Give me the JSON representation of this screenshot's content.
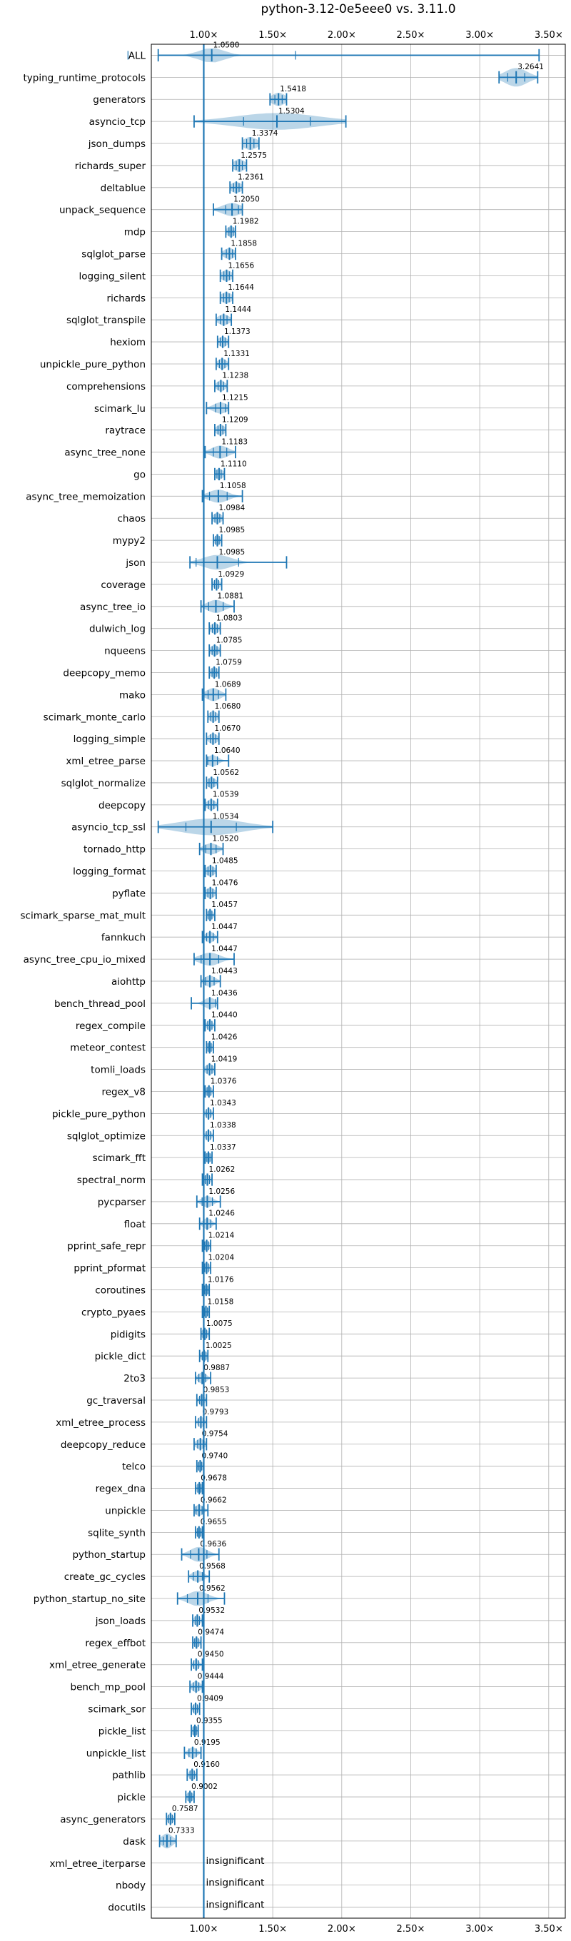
{
  "chart_data": {
    "type": "violin",
    "title": "python-3.12-0e5eee0 vs. 3.11.0",
    "xlabel": "",
    "ylabel": "",
    "x_ticks": [
      1.0,
      1.5,
      2.0,
      2.5,
      3.0,
      3.5
    ],
    "x_tick_labels": [
      "1.00×",
      "1.50×",
      "2.00×",
      "2.50×",
      "3.00×",
      "3.50×"
    ],
    "xlim": [
      0.62,
      3.62
    ],
    "reference_line": 1.0,
    "grid": true,
    "benchmarks": [
      {
        "name": "ALL",
        "value": 1.058,
        "label": "1.0580",
        "min": 0.67,
        "max": 3.43,
        "spread": 0.09,
        "width": 0.8
      },
      {
        "name": "typing_runtime_protocols",
        "value": 3.2641,
        "label": "3.2641",
        "min": 3.14,
        "max": 3.42,
        "spread": 0.08,
        "width": 1.0
      },
      {
        "name": "generators",
        "value": 1.5418,
        "label": "1.5418",
        "min": 1.48,
        "max": 1.6,
        "spread": 0.05,
        "width": 0.7
      },
      {
        "name": "asyncio_tcp",
        "value": 1.5304,
        "label": "1.5304",
        "min": 0.93,
        "max": 2.03,
        "spread": 0.3,
        "width": 0.9
      },
      {
        "name": "json_dumps",
        "value": 1.3374,
        "label": "1.3374",
        "min": 1.28,
        "max": 1.4,
        "spread": 0.05,
        "width": 0.7
      },
      {
        "name": "richards_super",
        "value": 1.2575,
        "label": "1.2575",
        "min": 1.21,
        "max": 1.31,
        "spread": 0.04,
        "width": 0.7
      },
      {
        "name": "deltablue",
        "value": 1.2361,
        "label": "1.2361",
        "min": 1.19,
        "max": 1.28,
        "spread": 0.04,
        "width": 0.6
      },
      {
        "name": "unpack_sequence",
        "value": 1.205,
        "label": "1.2050",
        "min": 1.07,
        "max": 1.28,
        "spread": 0.07,
        "width": 0.7
      },
      {
        "name": "mdp",
        "value": 1.1982,
        "label": "1.1982",
        "min": 1.16,
        "max": 1.23,
        "spread": 0.03,
        "width": 0.6
      },
      {
        "name": "sqlglot_parse",
        "value": 1.1858,
        "label": "1.1858",
        "min": 1.13,
        "max": 1.23,
        "spread": 0.04,
        "width": 0.6
      },
      {
        "name": "logging_silent",
        "value": 1.1656,
        "label": "1.1656",
        "min": 1.12,
        "max": 1.21,
        "spread": 0.04,
        "width": 0.6
      },
      {
        "name": "richards",
        "value": 1.1644,
        "label": "1.1644",
        "min": 1.12,
        "max": 1.21,
        "spread": 0.04,
        "width": 0.6
      },
      {
        "name": "sqlglot_transpile",
        "value": 1.1444,
        "label": "1.1444",
        "min": 1.09,
        "max": 1.2,
        "spread": 0.04,
        "width": 0.6
      },
      {
        "name": "hexiom",
        "value": 1.1373,
        "label": "1.1373",
        "min": 1.1,
        "max": 1.18,
        "spread": 0.03,
        "width": 0.6
      },
      {
        "name": "unpickle_pure_python",
        "value": 1.1331,
        "label": "1.1331",
        "min": 1.09,
        "max": 1.18,
        "spread": 0.03,
        "width": 0.6
      },
      {
        "name": "comprehensions",
        "value": 1.1238,
        "label": "1.1238",
        "min": 1.08,
        "max": 1.17,
        "spread": 0.03,
        "width": 0.6
      },
      {
        "name": "scimark_lu",
        "value": 1.1215,
        "label": "1.1215",
        "min": 1.02,
        "max": 1.18,
        "spread": 0.05,
        "width": 0.6
      },
      {
        "name": "raytrace",
        "value": 1.1209,
        "label": "1.1209",
        "min": 1.08,
        "max": 1.16,
        "spread": 0.03,
        "width": 0.6
      },
      {
        "name": "async_tree_none",
        "value": 1.1183,
        "label": "1.1183",
        "min": 1.01,
        "max": 1.23,
        "spread": 0.06,
        "width": 0.7
      },
      {
        "name": "go",
        "value": 1.111,
        "label": "1.1110",
        "min": 1.08,
        "max": 1.15,
        "spread": 0.03,
        "width": 0.6
      },
      {
        "name": "async_tree_memoization",
        "value": 1.1058,
        "label": "1.1058",
        "min": 0.99,
        "max": 1.28,
        "spread": 0.07,
        "width": 0.7
      },
      {
        "name": "chaos",
        "value": 1.0984,
        "label": "1.0984",
        "min": 1.06,
        "max": 1.14,
        "spread": 0.03,
        "width": 0.6
      },
      {
        "name": "mypy2",
        "value": 1.0985,
        "label": "1.0985",
        "min": 1.07,
        "max": 1.13,
        "spread": 0.02,
        "width": 0.6
      },
      {
        "name": "json",
        "value": 1.0985,
        "label": "1.0985",
        "min": 0.9,
        "max": 1.6,
        "spread": 0.1,
        "width": 0.8
      },
      {
        "name": "coverage",
        "value": 1.0929,
        "label": "1.0929",
        "min": 1.06,
        "max": 1.13,
        "spread": 0.02,
        "width": 0.6
      },
      {
        "name": "async_tree_io",
        "value": 1.0881,
        "label": "1.0881",
        "min": 0.98,
        "max": 1.22,
        "spread": 0.06,
        "width": 0.7
      },
      {
        "name": "dulwich_log",
        "value": 1.0803,
        "label": "1.0803",
        "min": 1.04,
        "max": 1.12,
        "spread": 0.03,
        "width": 0.6
      },
      {
        "name": "nqueens",
        "value": 1.0785,
        "label": "1.0785",
        "min": 1.04,
        "max": 1.12,
        "spread": 0.03,
        "width": 0.6
      },
      {
        "name": "deepcopy_memo",
        "value": 1.0759,
        "label": "1.0759",
        "min": 1.04,
        "max": 1.11,
        "spread": 0.03,
        "width": 0.6
      },
      {
        "name": "mako",
        "value": 1.0689,
        "label": "1.0689",
        "min": 0.99,
        "max": 1.16,
        "spread": 0.05,
        "width": 0.7
      },
      {
        "name": "scimark_monte_carlo",
        "value": 1.068,
        "label": "1.0680",
        "min": 1.03,
        "max": 1.11,
        "spread": 0.03,
        "width": 0.6
      },
      {
        "name": "logging_simple",
        "value": 1.067,
        "label": "1.0670",
        "min": 1.02,
        "max": 1.11,
        "spread": 0.03,
        "width": 0.6
      },
      {
        "name": "xml_etree_parse",
        "value": 1.064,
        "label": "1.0640",
        "min": 1.02,
        "max": 1.18,
        "spread": 0.04,
        "width": 0.6
      },
      {
        "name": "sqlglot_normalize",
        "value": 1.0562,
        "label": "1.0562",
        "min": 1.02,
        "max": 1.1,
        "spread": 0.03,
        "width": 0.6
      },
      {
        "name": "deepcopy",
        "value": 1.0539,
        "label": "1.0539",
        "min": 1.01,
        "max": 1.1,
        "spread": 0.03,
        "width": 0.6
      },
      {
        "name": "asyncio_tcp_ssl",
        "value": 1.0534,
        "label": "1.0534",
        "min": 0.67,
        "max": 1.5,
        "spread": 0.22,
        "width": 0.9
      },
      {
        "name": "tornado_http",
        "value": 1.052,
        "label": "1.0520",
        "min": 0.97,
        "max": 1.14,
        "spread": 0.05,
        "width": 0.6
      },
      {
        "name": "logging_format",
        "value": 1.0485,
        "label": "1.0485",
        "min": 1.01,
        "max": 1.09,
        "spread": 0.03,
        "width": 0.6
      },
      {
        "name": "pyflate",
        "value": 1.0476,
        "label": "1.0476",
        "min": 1.01,
        "max": 1.09,
        "spread": 0.03,
        "width": 0.6
      },
      {
        "name": "scimark_sparse_mat_mult",
        "value": 1.0457,
        "label": "1.0457",
        "min": 1.02,
        "max": 1.08,
        "spread": 0.02,
        "width": 0.6
      },
      {
        "name": "fannkuch",
        "value": 1.0447,
        "label": "1.0447",
        "min": 0.99,
        "max": 1.1,
        "spread": 0.03,
        "width": 0.6
      },
      {
        "name": "async_tree_cpu_io_mixed",
        "value": 1.0447,
        "label": "1.0447",
        "min": 0.93,
        "max": 1.22,
        "spread": 0.07,
        "width": 0.7
      },
      {
        "name": "aiohttp",
        "value": 1.0443,
        "label": "1.0443",
        "min": 0.98,
        "max": 1.12,
        "spread": 0.04,
        "width": 0.6
      },
      {
        "name": "bench_thread_pool",
        "value": 1.0436,
        "label": "1.0436",
        "min": 0.91,
        "max": 1.1,
        "spread": 0.04,
        "width": 0.6
      },
      {
        "name": "regex_compile",
        "value": 1.044,
        "label": "1.0440",
        "min": 1.01,
        "max": 1.08,
        "spread": 0.02,
        "width": 0.6
      },
      {
        "name": "meteor_contest",
        "value": 1.0426,
        "label": "1.0426",
        "min": 1.02,
        "max": 1.07,
        "spread": 0.02,
        "width": 0.6
      },
      {
        "name": "tomli_loads",
        "value": 1.0419,
        "label": "1.0419",
        "min": 1.0,
        "max": 1.08,
        "spread": 0.03,
        "width": 0.6
      },
      {
        "name": "regex_v8",
        "value": 1.0376,
        "label": "1.0376",
        "min": 1.01,
        "max": 1.07,
        "spread": 0.02,
        "width": 0.6
      },
      {
        "name": "pickle_pure_python",
        "value": 1.0343,
        "label": "1.0343",
        "min": 1.0,
        "max": 1.07,
        "spread": 0.02,
        "width": 0.6
      },
      {
        "name": "sqlglot_optimize",
        "value": 1.0338,
        "label": "1.0338",
        "min": 1.0,
        "max": 1.07,
        "spread": 0.02,
        "width": 0.6
      },
      {
        "name": "scimark_fft",
        "value": 1.0337,
        "label": "1.0337",
        "min": 1.01,
        "max": 1.06,
        "spread": 0.02,
        "width": 0.6
      },
      {
        "name": "spectral_norm",
        "value": 1.0262,
        "label": "1.0262",
        "min": 0.99,
        "max": 1.06,
        "spread": 0.02,
        "width": 0.6
      },
      {
        "name": "pycparser",
        "value": 1.0256,
        "label": "1.0256",
        "min": 0.95,
        "max": 1.12,
        "spread": 0.04,
        "width": 0.6
      },
      {
        "name": "float",
        "value": 1.0246,
        "label": "1.0246",
        "min": 0.97,
        "max": 1.09,
        "spread": 0.03,
        "width": 0.6
      },
      {
        "name": "pprint_safe_repr",
        "value": 1.0214,
        "label": "1.0214",
        "min": 0.99,
        "max": 1.05,
        "spread": 0.02,
        "width": 0.6
      },
      {
        "name": "pprint_pformat",
        "value": 1.0204,
        "label": "1.0204",
        "min": 0.99,
        "max": 1.05,
        "spread": 0.02,
        "width": 0.6
      },
      {
        "name": "coroutines",
        "value": 1.0176,
        "label": "1.0176",
        "min": 0.99,
        "max": 1.04,
        "spread": 0.02,
        "width": 0.6
      },
      {
        "name": "crypto_pyaes",
        "value": 1.0158,
        "label": "1.0158",
        "min": 0.99,
        "max": 1.04,
        "spread": 0.02,
        "width": 0.6
      },
      {
        "name": "pidigits",
        "value": 1.0075,
        "label": "1.0075",
        "min": 0.98,
        "max": 1.04,
        "spread": 0.02,
        "width": 0.6
      },
      {
        "name": "pickle_dict",
        "value": 1.0025,
        "label": "1.0025",
        "min": 0.97,
        "max": 1.03,
        "spread": 0.02,
        "width": 0.6
      },
      {
        "name": "2to3",
        "value": 0.9887,
        "label": "0.9887",
        "min": 0.94,
        "max": 1.05,
        "spread": 0.03,
        "width": 0.6
      },
      {
        "name": "gc_traversal",
        "value": 0.9853,
        "label": "0.9853",
        "min": 0.95,
        "max": 1.02,
        "spread": 0.02,
        "width": 0.6
      },
      {
        "name": "xml_etree_process",
        "value": 0.9793,
        "label": "0.9793",
        "min": 0.94,
        "max": 1.02,
        "spread": 0.02,
        "width": 0.6
      },
      {
        "name": "deepcopy_reduce",
        "value": 0.9754,
        "label": "0.9754",
        "min": 0.93,
        "max": 1.02,
        "spread": 0.03,
        "width": 0.6
      },
      {
        "name": "telco",
        "value": 0.974,
        "label": "0.9740",
        "min": 0.95,
        "max": 1.0,
        "spread": 0.02,
        "width": 0.6
      },
      {
        "name": "regex_dna",
        "value": 0.9678,
        "label": "0.9678",
        "min": 0.94,
        "max": 0.99,
        "spread": 0.02,
        "width": 0.6
      },
      {
        "name": "unpickle",
        "value": 0.9662,
        "label": "0.9662",
        "min": 0.93,
        "max": 1.03,
        "spread": 0.03,
        "width": 0.6
      },
      {
        "name": "sqlite_synth",
        "value": 0.9655,
        "label": "0.9655",
        "min": 0.94,
        "max": 0.99,
        "spread": 0.02,
        "width": 0.6
      },
      {
        "name": "python_startup",
        "value": 0.9636,
        "label": "0.9636",
        "min": 0.84,
        "max": 1.11,
        "spread": 0.06,
        "width": 0.8
      },
      {
        "name": "create_gc_cycles",
        "value": 0.9568,
        "label": "0.9568",
        "min": 0.89,
        "max": 1.04,
        "spread": 0.04,
        "width": 0.6
      },
      {
        "name": "python_startup_no_site",
        "value": 0.9562,
        "label": "0.9562",
        "min": 0.81,
        "max": 1.15,
        "spread": 0.07,
        "width": 0.8
      },
      {
        "name": "json_loads",
        "value": 0.9532,
        "label": "0.9532",
        "min": 0.92,
        "max": 0.99,
        "spread": 0.02,
        "width": 0.6
      },
      {
        "name": "regex_effbot",
        "value": 0.9474,
        "label": "0.9474",
        "min": 0.92,
        "max": 0.98,
        "spread": 0.02,
        "width": 0.6
      },
      {
        "name": "xml_etree_generate",
        "value": 0.945,
        "label": "0.9450",
        "min": 0.91,
        "max": 0.99,
        "spread": 0.02,
        "width": 0.6
      },
      {
        "name": "bench_mp_pool",
        "value": 0.9444,
        "label": "0.9444",
        "min": 0.9,
        "max": 0.99,
        "spread": 0.03,
        "width": 0.6
      },
      {
        "name": "scimark_sor",
        "value": 0.9409,
        "label": "0.9409",
        "min": 0.91,
        "max": 0.97,
        "spread": 0.02,
        "width": 0.6
      },
      {
        "name": "pickle_list",
        "value": 0.9355,
        "label": "0.9355",
        "min": 0.91,
        "max": 0.96,
        "spread": 0.02,
        "width": 0.6
      },
      {
        "name": "unpickle_list",
        "value": 0.9195,
        "label": "0.9195",
        "min": 0.86,
        "max": 0.98,
        "spread": 0.03,
        "width": 0.6
      },
      {
        "name": "pathlib",
        "value": 0.916,
        "label": "0.9160",
        "min": 0.88,
        "max": 0.95,
        "spread": 0.02,
        "width": 0.6
      },
      {
        "name": "pickle",
        "value": 0.9002,
        "label": "0.9002",
        "min": 0.87,
        "max": 0.93,
        "spread": 0.02,
        "width": 0.6
      },
      {
        "name": "async_generators",
        "value": 0.7587,
        "label": "0.7587",
        "min": 0.73,
        "max": 0.79,
        "spread": 0.02,
        "width": 0.6
      },
      {
        "name": "dask",
        "value": 0.7333,
        "label": "0.7333",
        "min": 0.68,
        "max": 0.8,
        "spread": 0.04,
        "width": 0.8
      },
      {
        "name": "xml_etree_iterparse",
        "value": null,
        "label": "insignificant"
      },
      {
        "name": "nbody",
        "value": null,
        "label": "insignificant"
      },
      {
        "name": "docutils",
        "value": null,
        "label": "insignificant"
      }
    ]
  }
}
